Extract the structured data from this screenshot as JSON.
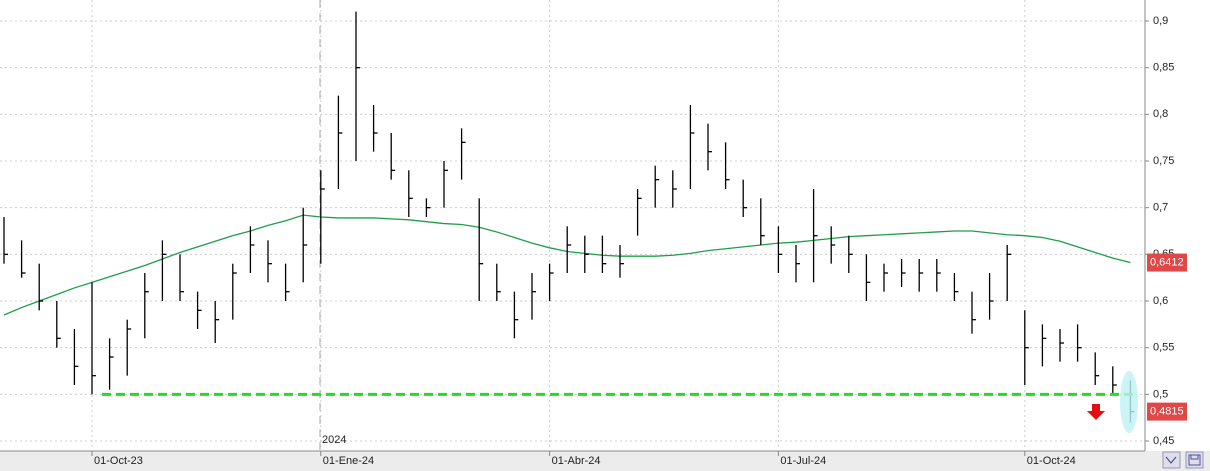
{
  "chart_data": {
    "type": "ohlc",
    "annotation": "2024",
    "categories": [
      null,
      null,
      null,
      null,
      null,
      "01-Oct-23",
      null,
      null,
      null,
      null,
      null,
      null,
      null,
      null,
      null,
      null,
      null,
      null,
      "01-Ene-24",
      null,
      null,
      null,
      null,
      null,
      null,
      null,
      null,
      null,
      null,
      null,
      null,
      "01-Abr-24",
      null,
      null,
      null,
      null,
      null,
      null,
      null,
      null,
      null,
      null,
      null,
      null,
      "01-Jul-24",
      null,
      null,
      null,
      null,
      null,
      null,
      null,
      null,
      null,
      null,
      null,
      null,
      null,
      "01-Oct-24",
      null,
      null,
      null,
      null,
      null,
      null
    ],
    "high": [
      0.69,
      0.665,
      0.64,
      0.6,
      0.57,
      0.62,
      0.56,
      0.58,
      0.63,
      0.665,
      0.65,
      0.61,
      0.6,
      0.64,
      0.68,
      0.665,
      0.64,
      0.7,
      0.74,
      0.82,
      0.91,
      0.81,
      0.78,
      0.74,
      0.71,
      0.75,
      0.785,
      0.71,
      0.64,
      0.61,
      0.63,
      0.64,
      0.68,
      0.67,
      0.67,
      0.66,
      0.72,
      0.745,
      0.74,
      0.81,
      0.79,
      0.77,
      0.73,
      0.71,
      0.68,
      0.66,
      0.72,
      0.68,
      0.67,
      0.65,
      0.64,
      0.645,
      0.645,
      0.645,
      0.63,
      0.61,
      0.63,
      0.66,
      0.59,
      0.575,
      0.57,
      0.575,
      0.545,
      0.53,
      0.515
    ],
    "low": [
      0.64,
      0.625,
      0.59,
      0.55,
      0.51,
      0.5,
      0.505,
      0.52,
      0.56,
      0.6,
      0.6,
      0.57,
      0.555,
      0.58,
      0.63,
      0.62,
      0.6,
      0.62,
      0.64,
      0.72,
      0.75,
      0.76,
      0.73,
      0.69,
      0.69,
      0.7,
      0.73,
      0.6,
      0.6,
      0.56,
      0.58,
      0.6,
      0.63,
      0.63,
      0.63,
      0.625,
      0.67,
      0.7,
      0.7,
      0.72,
      0.74,
      0.72,
      0.69,
      0.66,
      0.63,
      0.62,
      0.62,
      0.64,
      0.63,
      0.6,
      0.61,
      0.615,
      0.61,
      0.61,
      0.6,
      0.565,
      0.58,
      0.6,
      0.51,
      0.53,
      0.535,
      0.535,
      0.51,
      0.5,
      0.47
    ],
    "close": [
      0.65,
      0.63,
      0.6,
      0.56,
      0.53,
      0.52,
      0.54,
      0.57,
      0.61,
      0.65,
      0.61,
      0.59,
      0.58,
      0.63,
      0.66,
      0.64,
      0.61,
      0.66,
      0.72,
      0.78,
      0.85,
      0.78,
      0.74,
      0.71,
      0.7,
      0.74,
      0.77,
      0.64,
      0.61,
      0.58,
      0.61,
      0.63,
      0.66,
      0.65,
      0.64,
      0.64,
      0.71,
      0.73,
      0.72,
      0.78,
      0.76,
      0.73,
      0.7,
      0.67,
      0.65,
      0.64,
      0.67,
      0.66,
      0.65,
      0.62,
      0.63,
      0.63,
      0.63,
      0.63,
      0.61,
      0.58,
      0.6,
      0.65,
      0.55,
      0.56,
      0.555,
      0.55,
      0.52,
      0.51,
      0.4815
    ],
    "color": "#000000",
    "moving_average": {
      "color": "#1e9e4a",
      "values": [
        0.585,
        0.593,
        0.6,
        0.607,
        0.614,
        0.62,
        0.626,
        0.632,
        0.638,
        0.645,
        0.652,
        0.658,
        0.664,
        0.67,
        0.675,
        0.681,
        0.686,
        0.692,
        0.69,
        0.689,
        0.689,
        0.689,
        0.688,
        0.687,
        0.685,
        0.683,
        0.682,
        0.679,
        0.674,
        0.668,
        0.662,
        0.657,
        0.653,
        0.651,
        0.649,
        0.648,
        0.648,
        0.648,
        0.649,
        0.651,
        0.654,
        0.656,
        0.658,
        0.66,
        0.662,
        0.663,
        0.665,
        0.667,
        0.669,
        0.67,
        0.671,
        0.672,
        0.673,
        0.674,
        0.675,
        0.675,
        0.673,
        0.671,
        0.67,
        0.668,
        0.664,
        0.658,
        0.652,
        0.646,
        0.6412
      ]
    },
    "support": {
      "value": 0.5,
      "color": "#22dd22"
    },
    "price_labels": [
      {
        "value": 0.6412,
        "label": "0,6412"
      },
      {
        "value": 0.4815,
        "label": "0,4815"
      }
    ],
    "ylim": [
      0.4393,
      0.9225
    ],
    "yticks": [
      {
        "value": 0.45,
        "label": "0,45"
      },
      {
        "value": 0.5,
        "label": "0,5"
      },
      {
        "value": 0.55,
        "label": "0,55"
      },
      {
        "value": 0.6,
        "label": "0,6"
      },
      {
        "value": 0.65,
        "label": "0,65"
      },
      {
        "value": 0.7,
        "label": "0,7"
      },
      {
        "value": 0.75,
        "label": "0,75"
      },
      {
        "value": 0.8,
        "label": "0,8"
      },
      {
        "value": 0.85,
        "label": "0,85"
      },
      {
        "value": 0.9,
        "label": "0,9"
      }
    ],
    "grid": true
  }
}
